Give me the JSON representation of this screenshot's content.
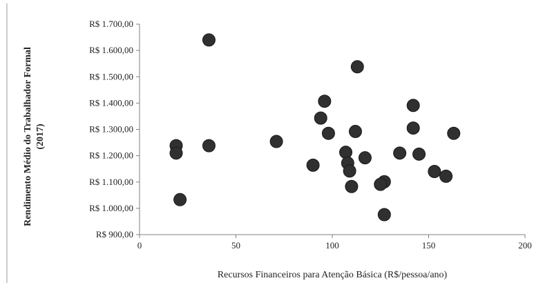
{
  "chart_data": {
    "type": "scatter",
    "title": "",
    "xlabel": "Recursos Financeiros para Atenção Básica (R$/pessoa/ano)",
    "ylabel": [
      "Rendimento Médio do Trabalhador Formal",
      "(2017)"
    ],
    "xlim": [
      0,
      200
    ],
    "ylim": [
      900,
      1700
    ],
    "x_ticks": [
      0,
      50,
      100,
      150,
      200
    ],
    "x_tick_labels": [
      "0",
      "50",
      "100",
      "150",
      "200"
    ],
    "y_ticks": [
      900,
      1000,
      1100,
      1200,
      1300,
      1400,
      1500,
      1600,
      1700
    ],
    "y_tick_labels": [
      "R$ 900,00",
      "R$ 1.000,00",
      "R$ 1.100,00",
      "R$ 1.200,00",
      "R$ 1.300,00",
      "R$ 1.400,00",
      "R$ 1.500,00",
      "R$ 1.600,00",
      "R$ 1.700,00"
    ],
    "grid": false,
    "legend": "none",
    "point_color": "#303030",
    "points": [
      {
        "x": 36,
        "y": 1640
      },
      {
        "x": 113,
        "y": 1538
      },
      {
        "x": 96,
        "y": 1407
      },
      {
        "x": 142,
        "y": 1391
      },
      {
        "x": 94,
        "y": 1343
      },
      {
        "x": 142,
        "y": 1305
      },
      {
        "x": 98,
        "y": 1285
      },
      {
        "x": 112,
        "y": 1292
      },
      {
        "x": 163,
        "y": 1285
      },
      {
        "x": 71,
        "y": 1254
      },
      {
        "x": 19,
        "y": 1238
      },
      {
        "x": 36,
        "y": 1238
      },
      {
        "x": 19,
        "y": 1210
      },
      {
        "x": 107,
        "y": 1213
      },
      {
        "x": 135,
        "y": 1210
      },
      {
        "x": 145,
        "y": 1206
      },
      {
        "x": 117,
        "y": 1192
      },
      {
        "x": 108,
        "y": 1172
      },
      {
        "x": 90,
        "y": 1164
      },
      {
        "x": 109,
        "y": 1142
      },
      {
        "x": 153,
        "y": 1140
      },
      {
        "x": 159,
        "y": 1122
      },
      {
        "x": 127,
        "y": 1101
      },
      {
        "x": 125,
        "y": 1091
      },
      {
        "x": 110,
        "y": 1083
      },
      {
        "x": 21,
        "y": 1033
      },
      {
        "x": 127,
        "y": 976
      }
    ]
  }
}
